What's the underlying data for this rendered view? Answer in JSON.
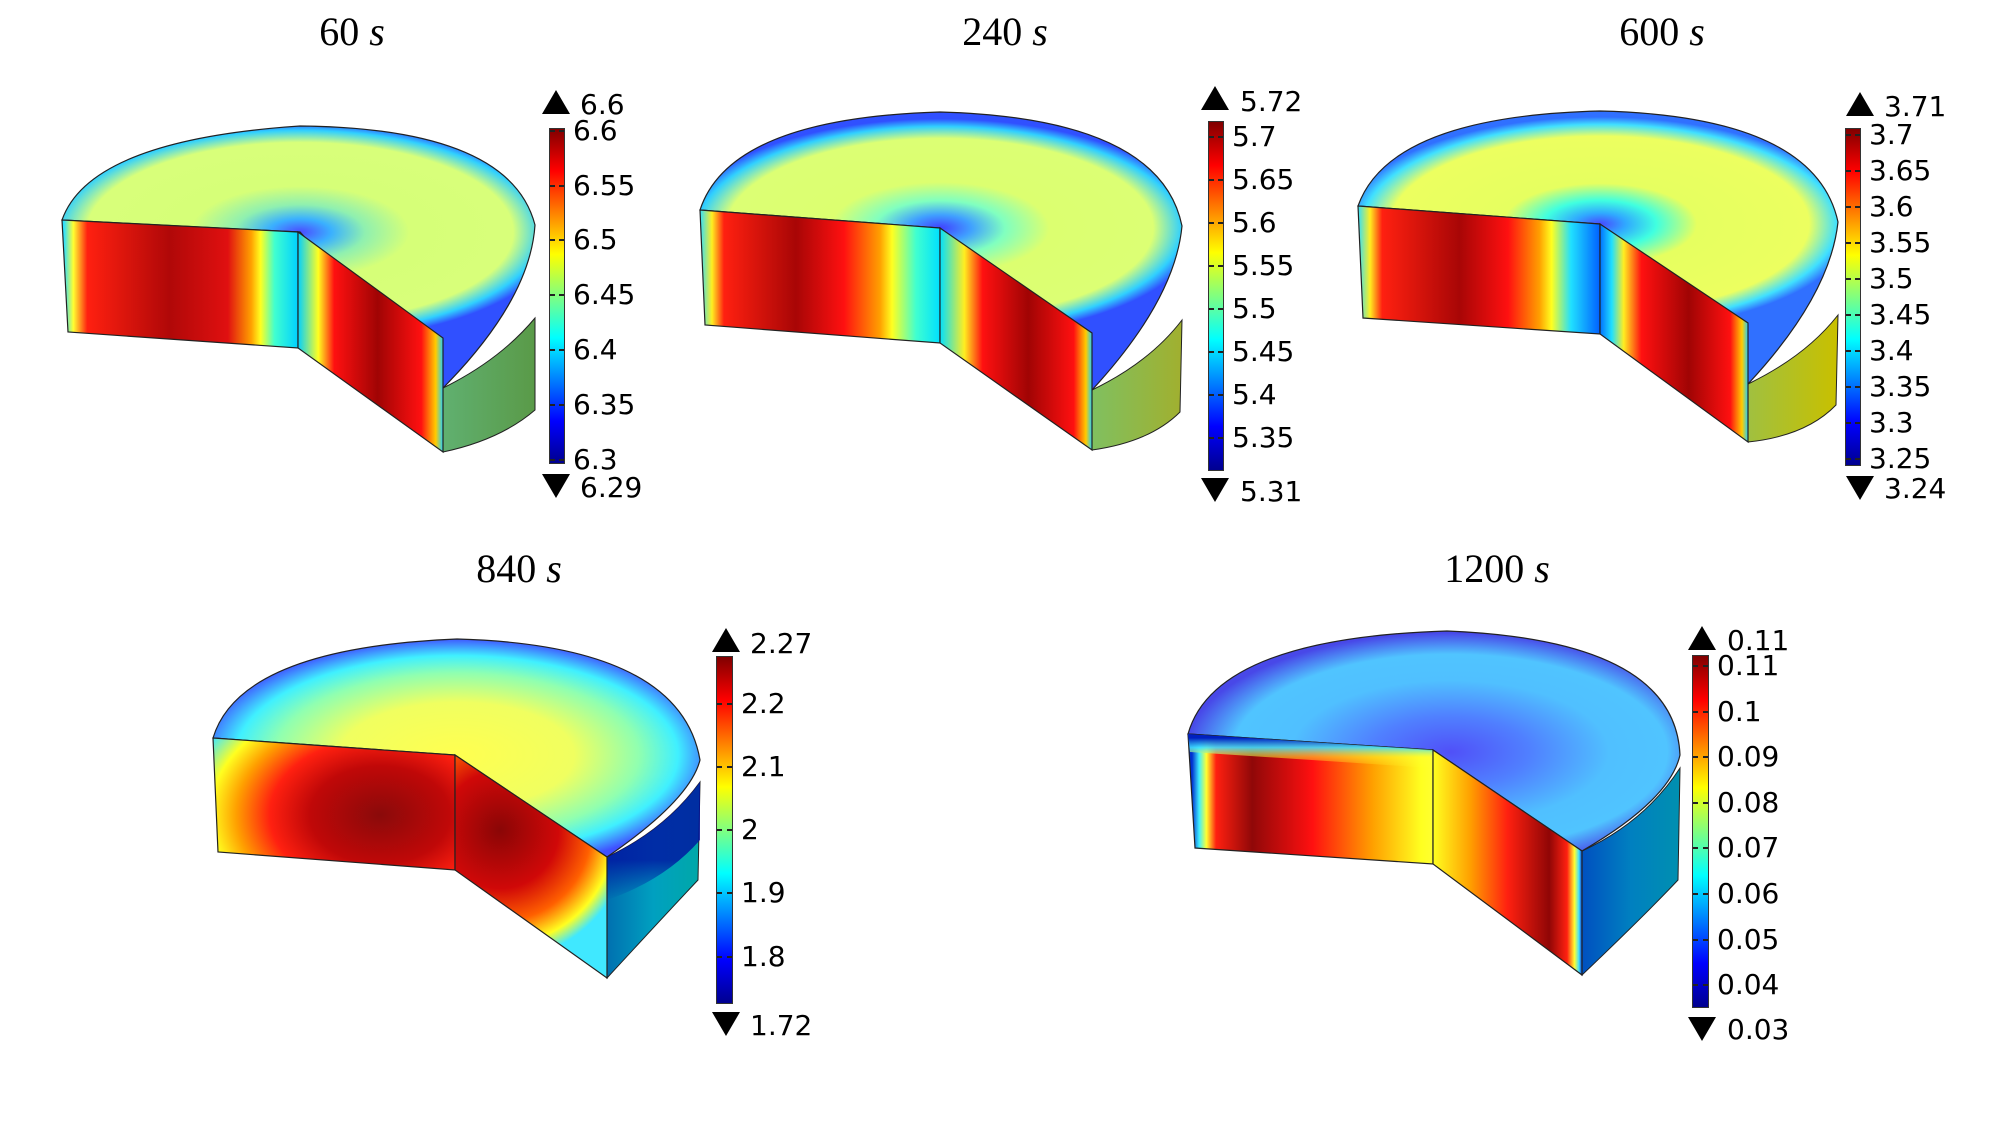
{
  "chart_data": [
    {
      "type": "heatmap",
      "title": "60 s",
      "time_value": "60",
      "time_unit": "s",
      "colormap": "rainbow",
      "colorbar": {
        "max_arrow": "6.6",
        "min_arrow": "6.29",
        "ticks": [
          "6.6",
          "6.55",
          "6.5",
          "6.45",
          "6.4",
          "6.35",
          "6.3"
        ],
        "range": [
          6.29,
          6.6
        ]
      },
      "field_description": "Cut-away cylinder; cut faces high (red, ~6.58) with low region (cyan/blue ~6.38) near axis; top surface ~6.47 with blue rim; outer side ~6.45"
    },
    {
      "type": "heatmap",
      "title": "240 s",
      "time_value": "240",
      "time_unit": "s",
      "colormap": "rainbow",
      "colorbar": {
        "max_arrow": "5.72",
        "min_arrow": "5.31",
        "ticks": [
          "5.7",
          "5.65",
          "5.6",
          "5.55",
          "5.5",
          "5.45",
          "5.4",
          "5.35"
        ],
        "range": [
          5.31,
          5.72
        ]
      },
      "field_description": "Cut faces mostly red (~5.68), cyan near axis; top surface yellow-green (~5.55) with blue center and rim"
    },
    {
      "type": "heatmap",
      "title": "600 s",
      "time_value": "600",
      "time_unit": "s",
      "colormap": "rainbow",
      "colorbar": {
        "max_arrow": "3.71",
        "min_arrow": "3.24",
        "ticks": [
          "3.7",
          "3.65",
          "3.6",
          "3.55",
          "3.5",
          "3.45",
          "3.4",
          "3.35",
          "3.3",
          "3.25"
        ],
        "range": [
          3.24,
          3.71
        ]
      },
      "field_description": "Cut faces red (~3.68) with blue near axis; top surface yellow (~3.53); outer side yellow-green"
    },
    {
      "type": "heatmap",
      "title": "840 s",
      "time_value": "840",
      "time_unit": "s",
      "colormap": "rainbow",
      "colorbar": {
        "max_arrow": "2.27",
        "min_arrow": "1.72",
        "ticks": [
          "2.2",
          "2.1",
          "2",
          "1.9",
          "1.8"
        ],
        "range": [
          1.72,
          2.27
        ]
      },
      "field_description": "Cut faces dark red core (~2.25) fading to yellow/cyan at edges; top surface yellow center (~2.08) to blue rim; outer side teal (~1.9)"
    },
    {
      "type": "heatmap",
      "title": "1200 s",
      "time_value": "1200",
      "time_unit": "s",
      "colormap": "rainbow",
      "colorbar": {
        "max_arrow": "0.11",
        "min_arrow": "0.03",
        "ticks": [
          "0.11",
          "0.1",
          "0.09",
          "0.08",
          "0.07",
          "0.06",
          "0.05",
          "0.04"
        ],
        "range": [
          0.03,
          0.11
        ]
      },
      "field_description": "Cut faces dark red at outer (~0.105) to yellow near axis (~0.085); top surface blue (~0.05); outer side blue/teal"
    }
  ],
  "panels": [
    {
      "title_num": "60",
      "title_unit": "s",
      "max_arrow": "6.6",
      "min_arrow": "6.29",
      "ticks": [
        "6.6",
        "6.55",
        "6.5",
        "6.45",
        "6.4",
        "6.35",
        "6.3"
      ]
    },
    {
      "title_num": "240",
      "title_unit": "s",
      "max_arrow": "5.72",
      "min_arrow": "5.31",
      "ticks": [
        "5.7",
        "5.65",
        "5.6",
        "5.55",
        "5.5",
        "5.45",
        "5.4",
        "5.35"
      ]
    },
    {
      "title_num": "600",
      "title_unit": "s",
      "max_arrow": "3.71",
      "min_arrow": "3.24",
      "ticks": [
        "3.7",
        "3.65",
        "3.6",
        "3.55",
        "3.5",
        "3.45",
        "3.4",
        "3.35",
        "3.3",
        "3.25"
      ]
    },
    {
      "title_num": "840",
      "title_unit": "s",
      "max_arrow": "2.27",
      "min_arrow": "1.72",
      "ticks": [
        "2.2",
        "2.1",
        "2",
        "1.9",
        "1.8"
      ]
    },
    {
      "title_num": "1200",
      "title_unit": "s",
      "max_arrow": "0.11",
      "min_arrow": "0.03",
      "ticks": [
        "0.11",
        "0.1",
        "0.09",
        "0.08",
        "0.07",
        "0.06",
        "0.05",
        "0.04"
      ]
    }
  ],
  "colors": {
    "dark_red": "#800000",
    "red": "#ff0000",
    "orange": "#ff8000",
    "yellow": "#ffff00",
    "green": "#80ff80",
    "cyan": "#00ffff",
    "light_blue": "#0080ff",
    "blue": "#0000ff",
    "dark_blue": "#00008f"
  }
}
